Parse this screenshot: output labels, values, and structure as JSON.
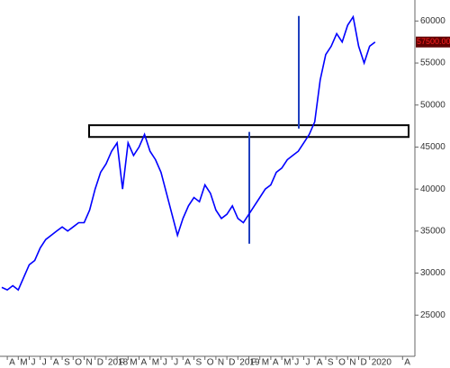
{
  "chart_data": {
    "type": "line",
    "categories": [
      null,
      "A",
      null,
      "M",
      null,
      "J",
      null,
      "J",
      null,
      "A",
      null,
      "S",
      null,
      "O",
      null,
      "N",
      null,
      "D",
      null,
      "2018",
      null,
      "F",
      null,
      "M",
      null,
      "A",
      null,
      "M",
      null,
      "J",
      null,
      "J",
      null,
      "A",
      null,
      "S",
      null,
      "O",
      null,
      "N",
      null,
      "D",
      null,
      "2019",
      null,
      "F",
      null,
      "M",
      null,
      "A",
      null,
      "M",
      null,
      "J",
      null,
      "J",
      null,
      "A",
      null,
      "S",
      null,
      "O",
      null,
      "N",
      null,
      "D",
      null,
      "2020",
      null,
      null,
      null,
      null,
      null,
      "A"
    ],
    "values": [
      28300,
      28000,
      28500,
      28000,
      29500,
      31000,
      31500,
      33000,
      34000,
      34500,
      35000,
      35500,
      35000,
      35500,
      36000,
      36000,
      37500,
      40000,
      42000,
      43000,
      44500,
      45500,
      40000,
      45500,
      44000,
      45000,
      46500,
      44500,
      43500,
      42000,
      39500,
      37000,
      34500,
      36500,
      38000,
      39000,
      38500,
      40500,
      39500,
      37500,
      36500,
      37000,
      38000,
      36500,
      36000,
      37000,
      38000,
      39000,
      40000,
      40500,
      42000,
      42500,
      43500,
      44000,
      44500,
      45500,
      46500,
      48000,
      53000,
      56000,
      57000,
      58500,
      57500,
      59500,
      60500,
      57000,
      55000,
      57000,
      57500,
      null,
      null,
      null,
      null,
      null
    ],
    "color": "#0000ff",
    "ylim": [
      20100,
      62500
    ],
    "yticks": [
      25000,
      30000,
      35000,
      40000,
      45000,
      50000,
      55000,
      60000
    ],
    "last_value": 57500,
    "last_value_label": "57500.00",
    "zone": [
      46200,
      47600
    ],
    "vlines": [
      [
        33500,
        46800
      ],
      [
        47200,
        60600
      ]
    ],
    "grid": false
  }
}
